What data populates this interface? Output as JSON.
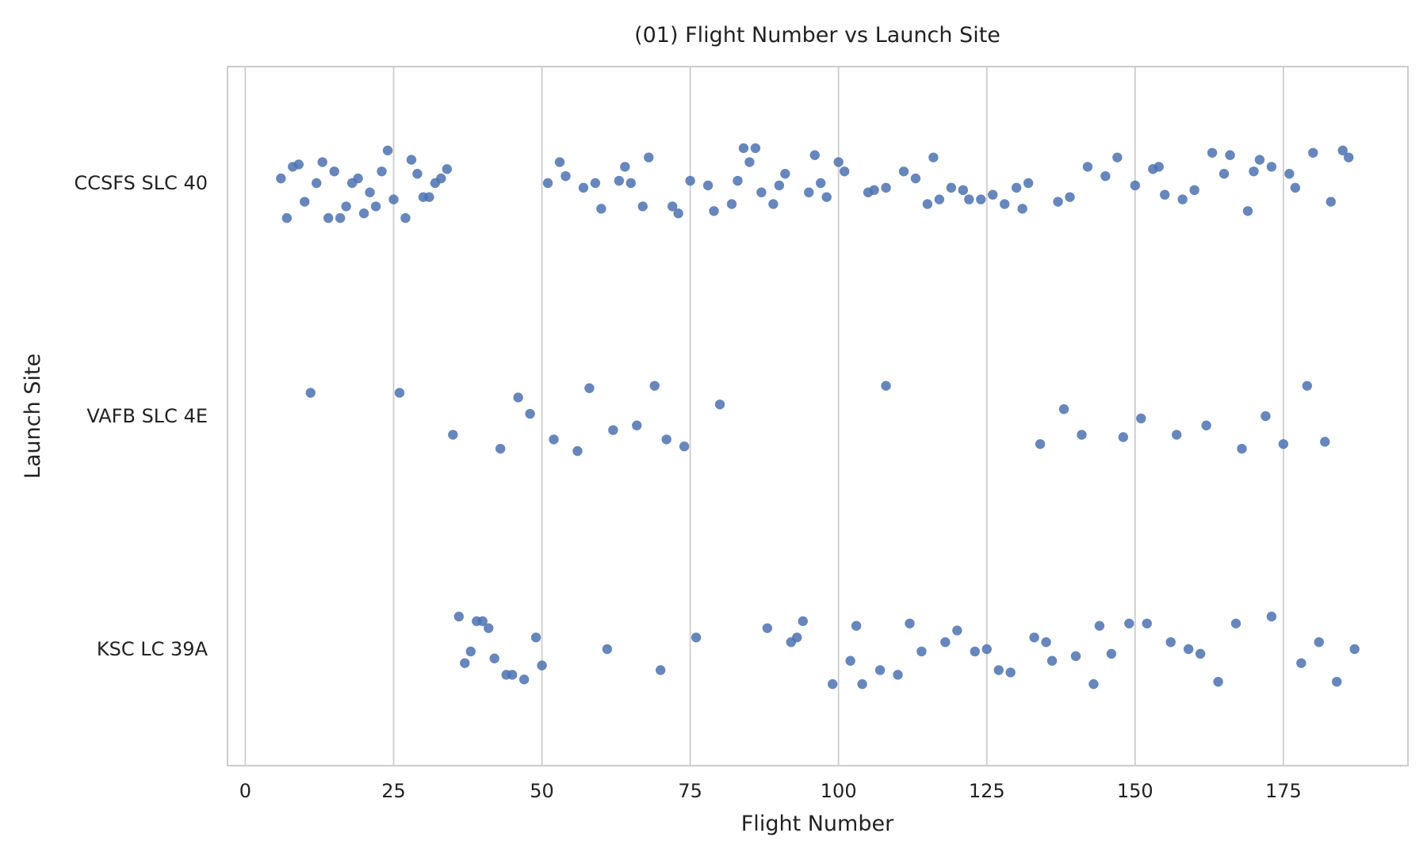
{
  "chart_data": {
    "type": "scatter",
    "title": "(01) Flight Number vs Launch Site",
    "xlabel": "Flight Number",
    "ylabel": "Launch Site",
    "xlim": [
      -3,
      196
    ],
    "x_ticks": [
      0,
      25,
      50,
      75,
      100,
      125,
      150,
      175
    ],
    "categories": [
      "CCSFS SLC 40",
      "VAFB SLC 4E",
      "KSC LC 39A"
    ],
    "grid": "vertical",
    "marker_color": "#4c72b0",
    "series": [
      {
        "category": "CCSFS SLC 40",
        "points": [
          {
            "x": 6,
            "j": -0.02
          },
          {
            "x": 7,
            "j": 0.15
          },
          {
            "x": 8,
            "j": -0.07
          },
          {
            "x": 9,
            "j": -0.08
          },
          {
            "x": 10,
            "j": 0.08
          },
          {
            "x": 12,
            "j": 0.0
          },
          {
            "x": 13,
            "j": -0.09
          },
          {
            "x": 14,
            "j": 0.15
          },
          {
            "x": 15,
            "j": -0.05
          },
          {
            "x": 16,
            "j": 0.15
          },
          {
            "x": 17,
            "j": 0.1
          },
          {
            "x": 18,
            "j": 0.0
          },
          {
            "x": 19,
            "j": -0.02
          },
          {
            "x": 20,
            "j": 0.13
          },
          {
            "x": 21,
            "j": 0.04
          },
          {
            "x": 22,
            "j": 0.1
          },
          {
            "x": 23,
            "j": -0.05
          },
          {
            "x": 24,
            "j": -0.14
          },
          {
            "x": 25,
            "j": 0.07
          },
          {
            "x": 27,
            "j": 0.15
          },
          {
            "x": 28,
            "j": -0.1
          },
          {
            "x": 29,
            "j": -0.04
          },
          {
            "x": 30,
            "j": 0.06
          },
          {
            "x": 31,
            "j": 0.06
          },
          {
            "x": 32,
            "j": 0.0
          },
          {
            "x": 33,
            "j": -0.02
          },
          {
            "x": 34,
            "j": -0.06
          },
          {
            "x": 51,
            "j": 0.0
          },
          {
            "x": 53,
            "j": -0.09
          },
          {
            "x": 54,
            "j": -0.03
          },
          {
            "x": 57,
            "j": 0.02
          },
          {
            "x": 59,
            "j": 0.0
          },
          {
            "x": 60,
            "j": 0.11
          },
          {
            "x": 63,
            "j": -0.01
          },
          {
            "x": 64,
            "j": -0.07
          },
          {
            "x": 65,
            "j": 0.0
          },
          {
            "x": 67,
            "j": 0.1
          },
          {
            "x": 68,
            "j": -0.11
          },
          {
            "x": 72,
            "j": 0.1
          },
          {
            "x": 73,
            "j": 0.13
          },
          {
            "x": 75,
            "j": -0.01
          },
          {
            "x": 78,
            "j": 0.01
          },
          {
            "x": 79,
            "j": 0.12
          },
          {
            "x": 82,
            "j": 0.09
          },
          {
            "x": 83,
            "j": -0.01
          },
          {
            "x": 84,
            "j": -0.15
          },
          {
            "x": 85,
            "j": -0.09
          },
          {
            "x": 86,
            "j": -0.15
          },
          {
            "x": 87,
            "j": 0.04
          },
          {
            "x": 89,
            "j": 0.09
          },
          {
            "x": 90,
            "j": 0.01
          },
          {
            "x": 91,
            "j": -0.04
          },
          {
            "x": 95,
            "j": 0.04
          },
          {
            "x": 96,
            "j": -0.12
          },
          {
            "x": 97,
            "j": 0.0
          },
          {
            "x": 98,
            "j": 0.06
          },
          {
            "x": 100,
            "j": -0.09
          },
          {
            "x": 101,
            "j": -0.05
          },
          {
            "x": 105,
            "j": 0.04
          },
          {
            "x": 106,
            "j": 0.03
          },
          {
            "x": 108,
            "j": 0.02
          },
          {
            "x": 111,
            "j": -0.05
          },
          {
            "x": 113,
            "j": -0.02
          },
          {
            "x": 115,
            "j": 0.09
          },
          {
            "x": 116,
            "j": -0.11
          },
          {
            "x": 117,
            "j": 0.07
          },
          {
            "x": 119,
            "j": 0.02
          },
          {
            "x": 121,
            "j": 0.03
          },
          {
            "x": 122,
            "j": 0.07
          },
          {
            "x": 124,
            "j": 0.07
          },
          {
            "x": 126,
            "j": 0.05
          },
          {
            "x": 128,
            "j": 0.09
          },
          {
            "x": 130,
            "j": 0.02
          },
          {
            "x": 131,
            "j": 0.11
          },
          {
            "x": 132,
            "j": 0.0
          },
          {
            "x": 137,
            "j": 0.08
          },
          {
            "x": 139,
            "j": 0.06
          },
          {
            "x": 142,
            "j": -0.07
          },
          {
            "x": 145,
            "j": -0.03
          },
          {
            "x": 147,
            "j": -0.11
          },
          {
            "x": 150,
            "j": 0.01
          },
          {
            "x": 153,
            "j": -0.06
          },
          {
            "x": 154,
            "j": -0.07
          },
          {
            "x": 155,
            "j": 0.05
          },
          {
            "x": 158,
            "j": 0.07
          },
          {
            "x": 160,
            "j": 0.03
          },
          {
            "x": 163,
            "j": -0.13
          },
          {
            "x": 165,
            "j": -0.04
          },
          {
            "x": 166,
            "j": -0.12
          },
          {
            "x": 169,
            "j": 0.12
          },
          {
            "x": 170,
            "j": -0.05
          },
          {
            "x": 171,
            "j": -0.1
          },
          {
            "x": 173,
            "j": -0.07
          },
          {
            "x": 176,
            "j": -0.04
          },
          {
            "x": 177,
            "j": 0.02
          },
          {
            "x": 180,
            "j": -0.13
          },
          {
            "x": 183,
            "j": 0.08
          },
          {
            "x": 185,
            "j": -0.14
          },
          {
            "x": 186,
            "j": -0.11
          }
        ]
      },
      {
        "category": "VAFB SLC 4E",
        "points": [
          {
            "x": 11,
            "j": -0.1
          },
          {
            "x": 26,
            "j": -0.1
          },
          {
            "x": 35,
            "j": 0.08
          },
          {
            "x": 43,
            "j": 0.14
          },
          {
            "x": 46,
            "j": -0.08
          },
          {
            "x": 48,
            "j": -0.01
          },
          {
            "x": 52,
            "j": 0.1
          },
          {
            "x": 56,
            "j": 0.15
          },
          {
            "x": 58,
            "j": -0.12
          },
          {
            "x": 62,
            "j": 0.06
          },
          {
            "x": 66,
            "j": 0.04
          },
          {
            "x": 69,
            "j": -0.13
          },
          {
            "x": 71,
            "j": 0.1
          },
          {
            "x": 74,
            "j": 0.13
          },
          {
            "x": 80,
            "j": -0.05
          },
          {
            "x": 108,
            "j": -0.13
          },
          {
            "x": 134,
            "j": 0.12
          },
          {
            "x": 138,
            "j": -0.03
          },
          {
            "x": 141,
            "j": 0.08
          },
          {
            "x": 148,
            "j": 0.09
          },
          {
            "x": 151,
            "j": 0.01
          },
          {
            "x": 157,
            "j": 0.08
          },
          {
            "x": 162,
            "j": 0.04
          },
          {
            "x": 168,
            "j": 0.14
          },
          {
            "x": 172,
            "j": 0.0
          },
          {
            "x": 175,
            "j": 0.12
          },
          {
            "x": 179,
            "j": -0.13
          },
          {
            "x": 182,
            "j": 0.11
          }
        ]
      },
      {
        "category": "KSC LC 39A",
        "points": [
          {
            "x": 36,
            "j": -0.14
          },
          {
            "x": 37,
            "j": 0.06
          },
          {
            "x": 38,
            "j": 0.01
          },
          {
            "x": 39,
            "j": -0.12
          },
          {
            "x": 40,
            "j": -0.12
          },
          {
            "x": 41,
            "j": -0.09
          },
          {
            "x": 42,
            "j": 0.04
          },
          {
            "x": 44,
            "j": 0.11
          },
          {
            "x": 45,
            "j": 0.11
          },
          {
            "x": 47,
            "j": 0.13
          },
          {
            "x": 49,
            "j": -0.05
          },
          {
            "x": 50,
            "j": 0.07
          },
          {
            "x": 61,
            "j": 0.0
          },
          {
            "x": 70,
            "j": 0.09
          },
          {
            "x": 76,
            "j": -0.05
          },
          {
            "x": 88,
            "j": -0.09
          },
          {
            "x": 92,
            "j": -0.03
          },
          {
            "x": 93,
            "j": -0.05
          },
          {
            "x": 94,
            "j": -0.12
          },
          {
            "x": 99,
            "j": 0.15
          },
          {
            "x": 102,
            "j": 0.05
          },
          {
            "x": 103,
            "j": -0.1
          },
          {
            "x": 104,
            "j": 0.15
          },
          {
            "x": 107,
            "j": 0.09
          },
          {
            "x": 110,
            "j": 0.11
          },
          {
            "x": 112,
            "j": -0.11
          },
          {
            "x": 114,
            "j": 0.01
          },
          {
            "x": 118,
            "j": -0.03
          },
          {
            "x": 120,
            "j": -0.08
          },
          {
            "x": 123,
            "j": 0.01
          },
          {
            "x": 125,
            "j": 0.0
          },
          {
            "x": 127,
            "j": 0.09
          },
          {
            "x": 129,
            "j": 0.1
          },
          {
            "x": 133,
            "j": -0.05
          },
          {
            "x": 135,
            "j": -0.03
          },
          {
            "x": 136,
            "j": 0.05
          },
          {
            "x": 140,
            "j": 0.03
          },
          {
            "x": 143,
            "j": 0.15
          },
          {
            "x": 144,
            "j": -0.1
          },
          {
            "x": 146,
            "j": 0.02
          },
          {
            "x": 149,
            "j": -0.11
          },
          {
            "x": 152,
            "j": -0.11
          },
          {
            "x": 156,
            "j": -0.03
          },
          {
            "x": 159,
            "j": 0.0
          },
          {
            "x": 161,
            "j": 0.02
          },
          {
            "x": 164,
            "j": 0.14
          },
          {
            "x": 167,
            "j": -0.11
          },
          {
            "x": 173,
            "j": -0.14
          },
          {
            "x": 178,
            "j": 0.06
          },
          {
            "x": 181,
            "j": -0.03
          },
          {
            "x": 184,
            "j": 0.14
          },
          {
            "x": 187,
            "j": 0.0
          }
        ]
      }
    ]
  }
}
